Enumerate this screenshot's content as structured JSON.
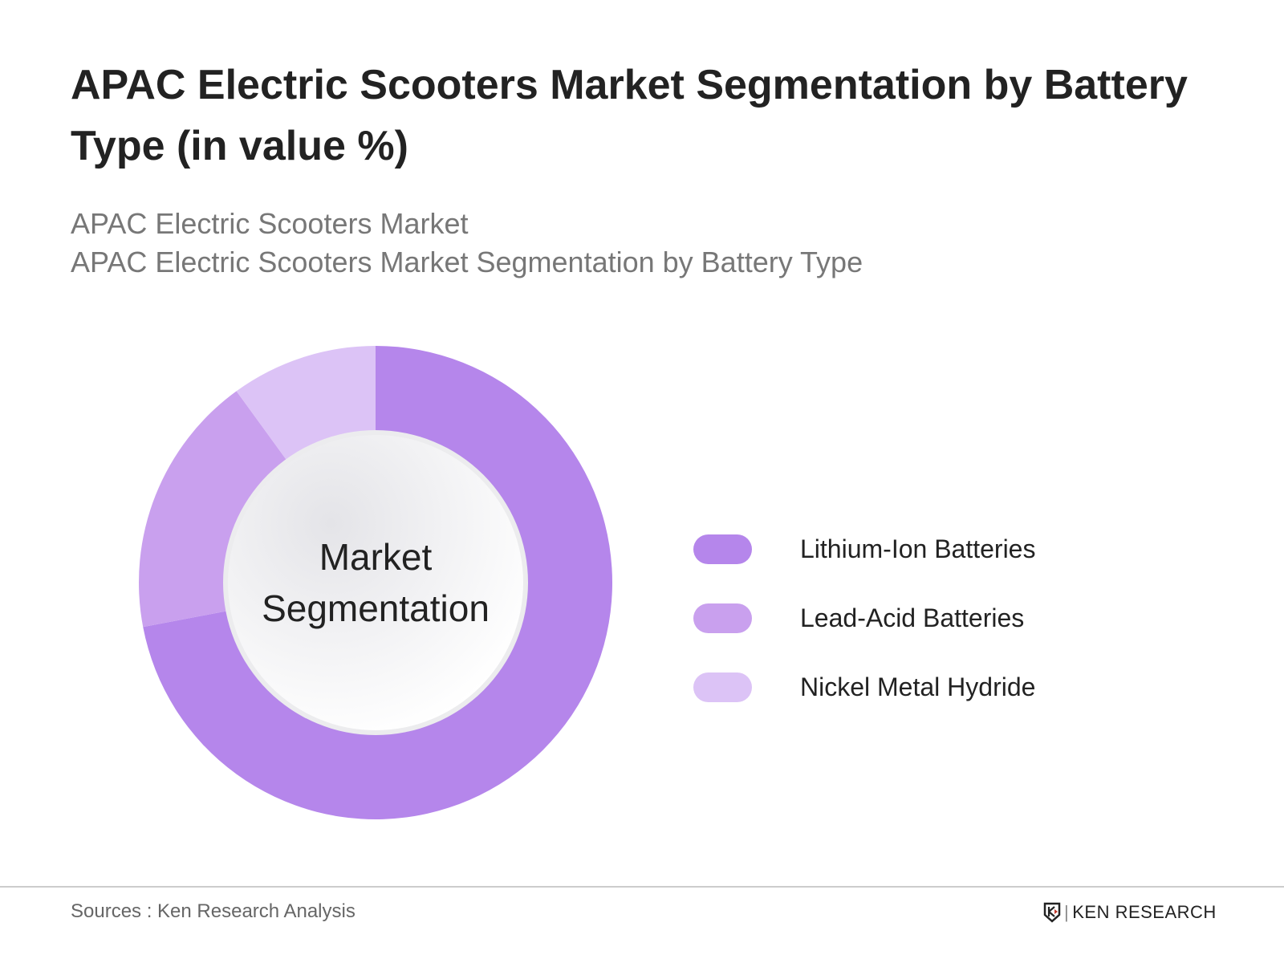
{
  "title": "APAC Electric Scooters Market Segmentation by Battery Type (in value %)",
  "subtitle_1": "APAC Electric Scooters Market",
  "subtitle_2": "APAC Electric Scooters Market Segmentation by Battery Type",
  "chart_data": {
    "type": "pie",
    "variant": "donut",
    "center_label": "Market Segmentation",
    "categories": [
      "Lithium-Ion Batteries",
      "Lead-Acid Batteries",
      "Nickel Metal Hydride"
    ],
    "values": [
      0.72,
      0.18,
      0.1
    ],
    "colors": [
      "#b586eb",
      "#c9a0ee",
      "#dcc3f6"
    ],
    "legend_position": "right"
  },
  "footer": {
    "source": "Sources : Ken Research Analysis",
    "logo_text": "KEN RESEARCH"
  }
}
